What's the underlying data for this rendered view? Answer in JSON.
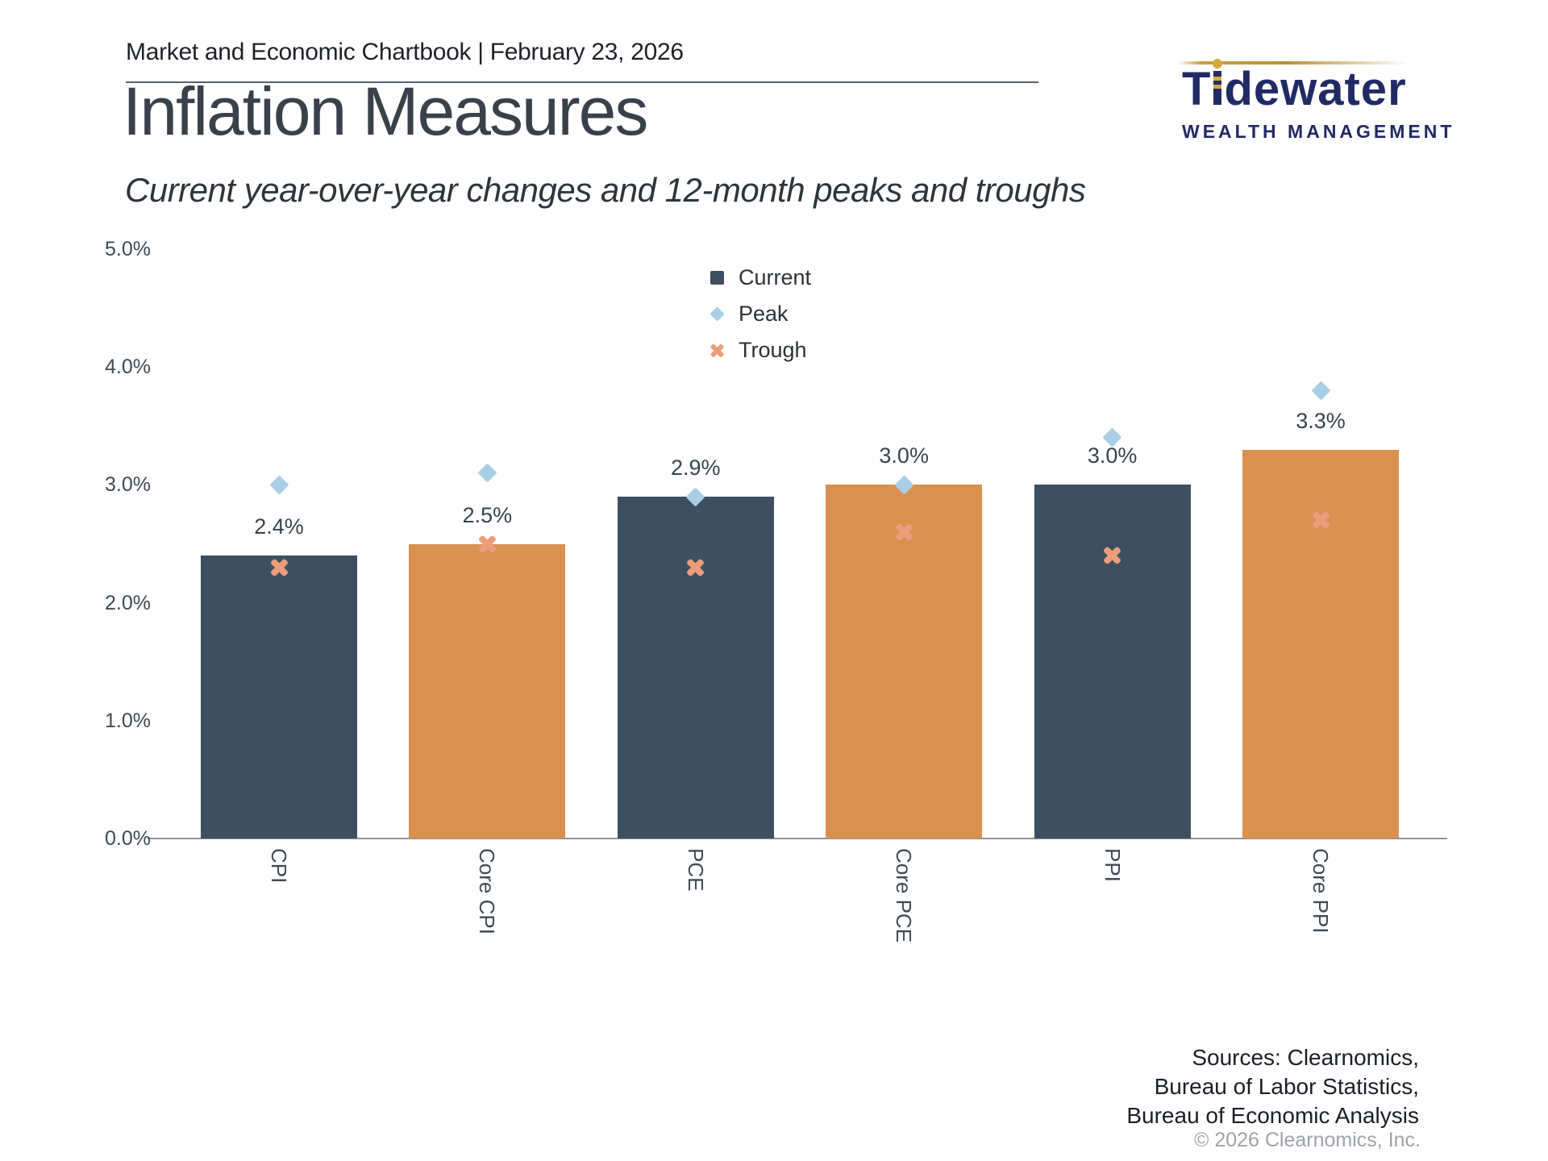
{
  "header": {
    "title": "Market and Economic Chartbook | February 23, 2026"
  },
  "logo": {
    "name": "Tidewater Wealth Management",
    "word_t": "T",
    "word_rest": "dewater",
    "subtitle": "WEALTH MANAGEMENT",
    "navy": "#202b66",
    "gold": "#d9a83f"
  },
  "title": "Inflation Measures",
  "subtitle": "Current year-over-year changes and 12-month peaks and troughs",
  "colors": {
    "bar_navy": "#3d4f60",
    "bar_orange": "#d9914f",
    "peak_blue": "#a9cfe7",
    "trough_salmon": "#ec9d7c",
    "axis_text": "#3f4a55"
  },
  "chart_data": {
    "type": "bar",
    "title": "Inflation Measures",
    "subtitle": "Current year-over-year changes and 12-month peaks and troughs",
    "categories": [
      "CPI",
      "Core CPI",
      "PCE",
      "Core PCE",
      "PPI",
      "Core PPI"
    ],
    "series": [
      {
        "name": "Current",
        "marker": "square",
        "color": "#3d4f60",
        "values": [
          2.4,
          2.5,
          2.9,
          3.0,
          3.0,
          3.3
        ]
      },
      {
        "name": "Peak",
        "marker": "diamond",
        "color": "#a9cfe7",
        "values": [
          3.0,
          3.1,
          2.9,
          3.0,
          3.4,
          3.8
        ]
      },
      {
        "name": "Trough",
        "marker": "x",
        "color": "#ec9d7c",
        "values": [
          2.3,
          2.5,
          2.3,
          2.6,
          2.4,
          2.7
        ]
      }
    ],
    "bar_labels": [
      "2.4%",
      "2.5%",
      "2.9%",
      "3.0%",
      "3.0%",
      "3.3%"
    ],
    "bar_colors": [
      "#3d4f60",
      "#d9914f"
    ],
    "y_ticks": [
      "5.0%",
      "4.0%",
      "3.0%",
      "2.0%",
      "1.0%",
      "0.0%"
    ],
    "ylim": [
      0,
      5
    ],
    "grid": false,
    "legend_position": "upper center",
    "legend_labels": [
      "Current",
      "Peak",
      "Trough"
    ]
  },
  "sources": {
    "line1": "Sources: Clearnomics,",
    "line2": "Bureau of Labor Statistics,",
    "line3": "Bureau of Economic Analysis",
    "copyright": "© 2026 Clearnomics, Inc."
  }
}
